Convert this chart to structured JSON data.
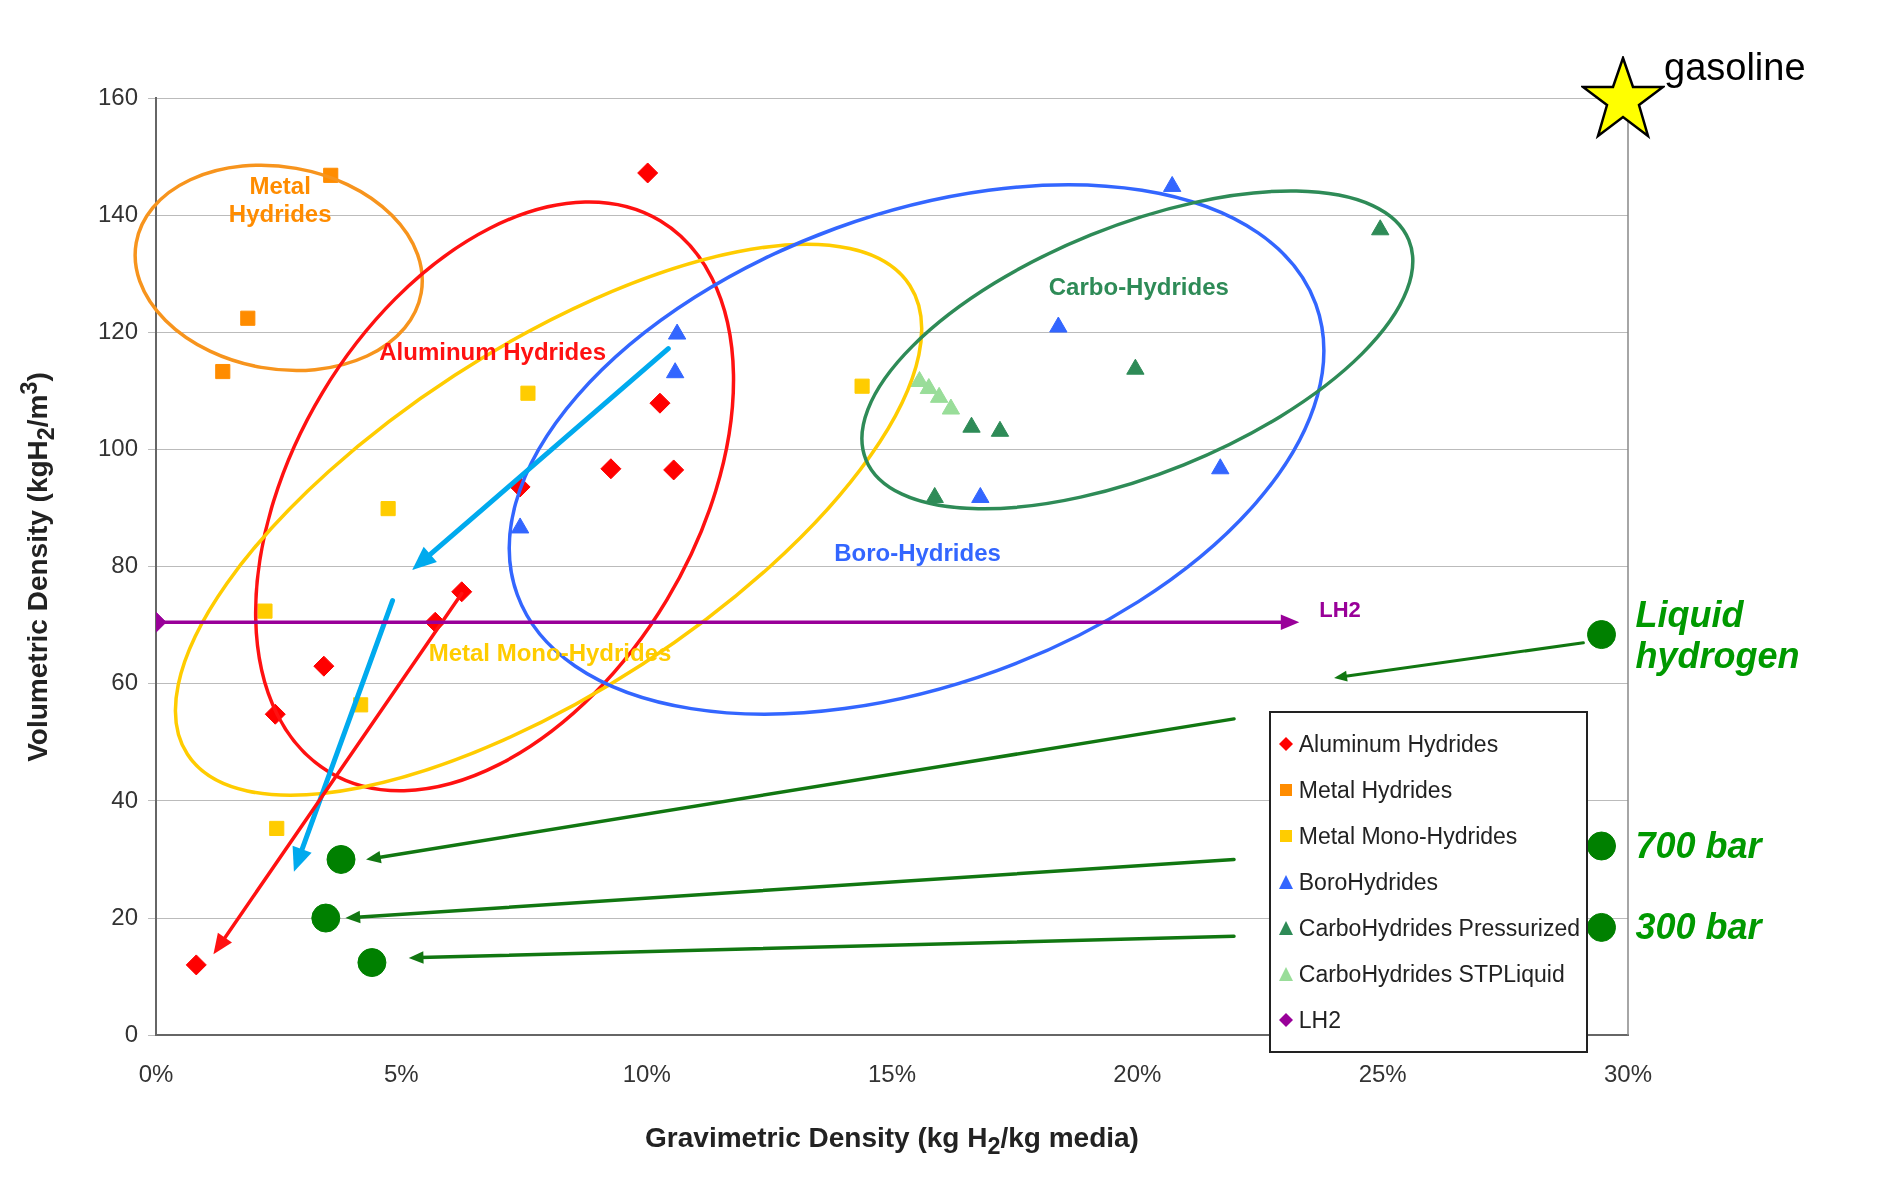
{
  "chart_data": {
    "type": "scatter",
    "xlabel": "Gravimetric Density (kg H$_{2}$/kg media)",
    "ylabel": "Volumetric Density (kgH$_{2}$/m$^{3}$)",
    "xlim": [
      0,
      30
    ],
    "xticks": [
      {
        "value": 0,
        "label": "0%"
      },
      {
        "value": 5,
        "label": "5%"
      },
      {
        "value": 10,
        "label": "10%"
      },
      {
        "value": 15,
        "label": "15%"
      },
      {
        "value": 20,
        "label": "20%"
      },
      {
        "value": 25,
        "label": "25%"
      },
      {
        "value": 30,
        "label": "30%"
      }
    ],
    "ylim": [
      0,
      160
    ],
    "yticks": [
      0,
      20,
      40,
      60,
      80,
      100,
      120,
      140,
      160
    ],
    "grid": "y",
    "legend": "bottom right",
    "series": [
      {
        "name": "Aluminum Hydrides",
        "color": "#ff0000",
        "marker": "diamond",
        "x": [
          10.02,
          10.27,
          9.27,
          10.55,
          7.42,
          5.69,
          6.23,
          3.42,
          2.43,
          0.82
        ],
        "values": [
          147.2,
          107.9,
          96.7,
          96.5,
          93.6,
          70.5,
          75.7,
          63.0,
          54.8,
          12.0
        ]
      },
      {
        "name": "Metal Hydrides",
        "color": "#ff8c00",
        "marker": "square",
        "x": [
          3.56,
          1.87,
          1.36
        ],
        "values": [
          146.8,
          122.4,
          113.3
        ]
      },
      {
        "name": "Metal Mono-Hydrides",
        "color": "#ffcc00",
        "marker": "square",
        "x": [
          7.58,
          14.39,
          4.73,
          2.22,
          4.17,
          2.46
        ],
        "values": [
          109.6,
          110.8,
          89.9,
          72.4,
          56.4,
          35.3
        ]
      },
      {
        "name": "BoroHydrides",
        "color": "#3366ff",
        "marker": "triangle",
        "x": [
          20.71,
          18.39,
          10.62,
          10.58,
          21.69,
          16.8,
          7.42
        ],
        "values": [
          144.9,
          120.9,
          119.7,
          113.1,
          96.7,
          91.8,
          86.6
        ]
      },
      {
        "name": "CarboHydrides Pressurized",
        "color": "#2e8b57",
        "marker": "triangle",
        "x": [
          24.95,
          19.96,
          17.2,
          16.62,
          15.87
        ],
        "values": [
          137.5,
          113.7,
          103.1,
          103.8,
          91.8
        ]
      },
      {
        "name": "CarboHydrides STPLiquid",
        "color": "#99dd99",
        "marker": "triangle",
        "x": [
          15.56,
          15.75,
          15.96,
          16.2
        ],
        "values": [
          111.6,
          110.4,
          108.9,
          106.9
        ]
      },
      {
        "name": "LH2",
        "color": "#990099",
        "marker": "diamond",
        "x": [
          0
        ],
        "values": [
          70.5
        ]
      },
      {
        "color": "#008000",
        "marker": "circle",
        "x": [
          3.77,
          3.46,
          4.4,
          29.46,
          29.46,
          29.46
        ],
        "values": [
          30,
          20,
          12.4,
          68.4,
          32.3,
          18.4
        ]
      }
    ],
    "annotations": [
      "Metal Hydrides",
      "Aluminum Hydrides",
      "Metal Mono-Hydrides",
      "Boro-Hydrides",
      "Carbo-Hydrides",
      "LH2",
      "Liquid hydrogen",
      "700 bar",
      "300 bar",
      "gasoline"
    ]
  }
}
